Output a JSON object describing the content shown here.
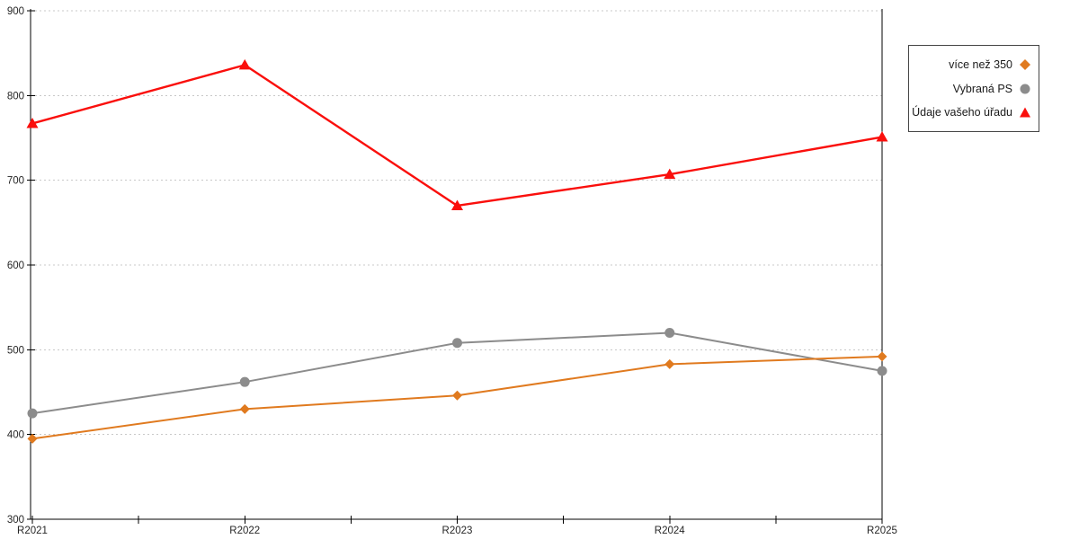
{
  "chart_data": {
    "type": "line",
    "title": "",
    "xlabel": "",
    "ylabel": "",
    "categories": [
      "R2021",
      "R2022",
      "R2023",
      "R2024",
      "R2025"
    ],
    "series": [
      {
        "name": "více než 350",
        "marker": "diamond",
        "color": "#E07A1F",
        "values": [
          395,
          430,
          446,
          483,
          492
        ]
      },
      {
        "name": "Vybraná PS",
        "marker": "circle",
        "color": "#8C8C8C",
        "values": [
          425,
          462,
          508,
          520,
          475
        ]
      },
      {
        "name": "Údaje vašeho úřadu",
        "marker": "triangle",
        "color": "#FA0F0C",
        "values": [
          767,
          836,
          670,
          707,
          751
        ]
      }
    ],
    "ylim": [
      300,
      900
    ],
    "ytick_step": 100,
    "ytick_labels": [
      "300",
      "400",
      "500",
      "600",
      "700",
      "800",
      "900"
    ],
    "grid": "horizontal-dotted",
    "grid_color": "#C8C8C8",
    "axis_color": "#000000",
    "legend_position": "right-outside"
  }
}
